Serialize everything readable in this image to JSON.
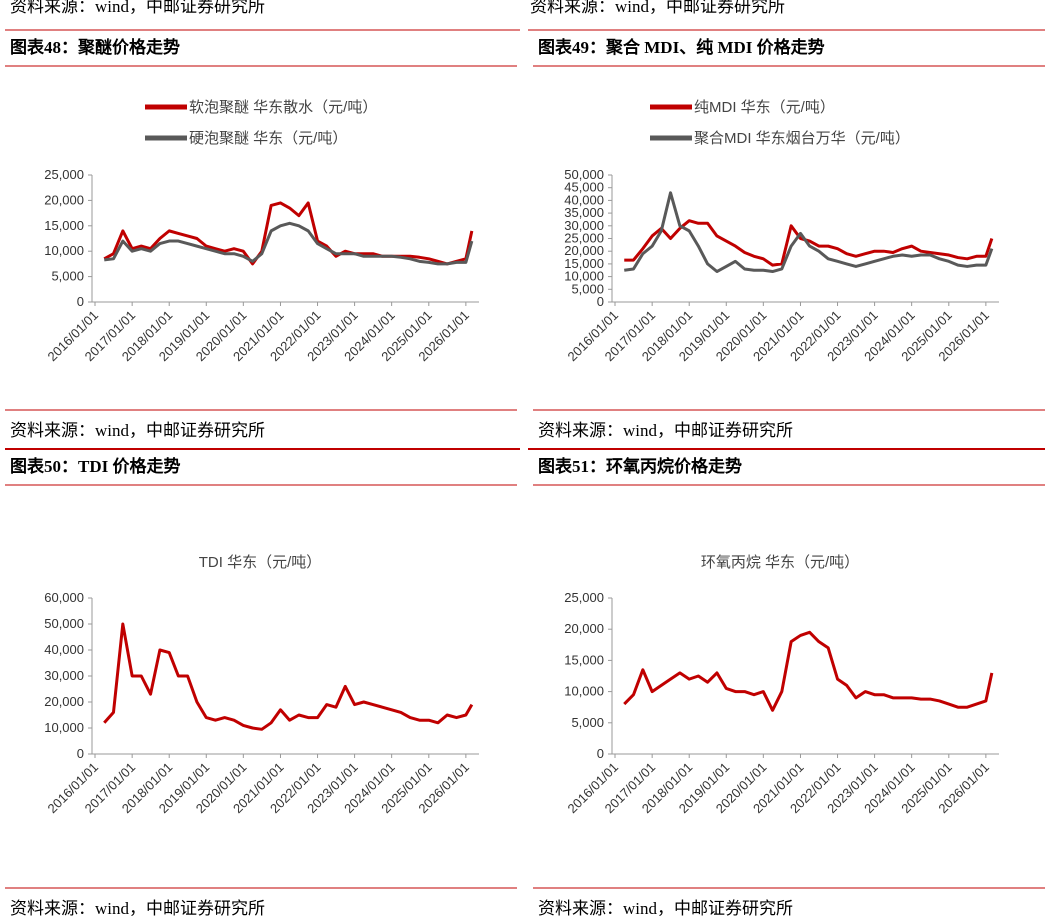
{
  "top_sources": [
    "资料来源：wind，中邮证券研究所",
    "资料来源：wind，中邮证券研究所"
  ],
  "chart_data": [
    {
      "type": "line",
      "title": "图表48：聚醚价格走势",
      "source": "资料来源：wind，中邮证券研究所",
      "legend_marker": true,
      "x": [
        "2016/04/01",
        "2016/07/01",
        "2016/10/01",
        "2017/01/01",
        "2017/04/01",
        "2017/07/01",
        "2017/10/01",
        "2018/01/01",
        "2018/04/01",
        "2018/07/01",
        "2018/10/01",
        "2019/01/01",
        "2019/04/01",
        "2019/07/01",
        "2019/10/01",
        "2020/01/01",
        "2020/04/01",
        "2020/07/01",
        "2020/10/01",
        "2021/01/01",
        "2021/04/01",
        "2021/07/01",
        "2021/10/01",
        "2022/01/01",
        "2022/04/01",
        "2022/07/01",
        "2022/10/01",
        "2023/01/01",
        "2023/04/01",
        "2023/07/01",
        "2023/10/01",
        "2024/01/01",
        "2024/04/01",
        "2024/07/01",
        "2024/10/01",
        "2025/01/01",
        "2025/04/01",
        "2025/07/01",
        "2025/10/01",
        "2026/01/01",
        "2026/03/01"
      ],
      "series": [
        {
          "name": "软泡聚醚 华东散水（元/吨）",
          "color": "#c00000",
          "values": [
            8500,
            9500,
            14000,
            10500,
            11000,
            10500,
            12500,
            14000,
            13500,
            13000,
            12500,
            11000,
            10500,
            10000,
            10500,
            10000,
            7500,
            10000,
            19000,
            19500,
            18500,
            17000,
            19500,
            12000,
            11000,
            9000,
            10000,
            9500,
            9500,
            9500,
            9000,
            9000,
            9000,
            9000,
            8800,
            8500,
            8000,
            7500,
            8000,
            8500,
            14000
          ]
        },
        {
          "name": "硬泡聚醚 华东（元/吨）",
          "color": "#595959",
          "values": [
            8300,
            8500,
            12000,
            10000,
            10500,
            10000,
            11500,
            12000,
            12000,
            11500,
            11000,
            10500,
            10000,
            9500,
            9500,
            9000,
            8000,
            9500,
            14000,
            15000,
            15500,
            15000,
            14000,
            11500,
            10500,
            9500,
            9500,
            9500,
            9000,
            9000,
            9000,
            9000,
            8800,
            8500,
            8000,
            7800,
            7500,
            7500,
            7800,
            7800,
            12000
          ]
        }
      ],
      "xlim": [
        "2016/01/01",
        "2026/04/01"
      ],
      "xticks": [
        "2016/01/01",
        "2017/01/01",
        "2018/01/01",
        "2019/01/01",
        "2020/01/01",
        "2021/01/01",
        "2022/01/01",
        "2023/01/01",
        "2024/01/01",
        "2025/01/01",
        "2026/01/01"
      ],
      "ylim": [
        0,
        25000
      ],
      "yticks": [
        0,
        {
          "value": 5000,
          "label": "5,000"
        },
        {
          "value": 10000,
          "label": "10,000"
        },
        {
          "value": 15000,
          "label": "15,000"
        },
        {
          "value": 20000,
          "label": "20,000"
        },
        {
          "value": 25000,
          "label": "25,000"
        }
      ]
    },
    {
      "type": "line",
      "title": "图表49：聚合 MDI、纯 MDI 价格走势",
      "source": "资料来源：wind，中邮证券研究所",
      "legend_marker": true,
      "x": [
        "2016/04/01",
        "2016/07/01",
        "2016/10/01",
        "2017/01/01",
        "2017/04/01",
        "2017/07/01",
        "2017/10/01",
        "2018/01/01",
        "2018/04/01",
        "2018/07/01",
        "2018/10/01",
        "2019/01/01",
        "2019/04/01",
        "2019/07/01",
        "2019/10/01",
        "2020/01/01",
        "2020/04/01",
        "2020/07/01",
        "2020/10/01",
        "2021/01/01",
        "2021/04/01",
        "2021/07/01",
        "2021/10/01",
        "2022/01/01",
        "2022/04/01",
        "2022/07/01",
        "2022/10/01",
        "2023/01/01",
        "2023/04/01",
        "2023/07/01",
        "2023/10/01",
        "2024/01/01",
        "2024/04/01",
        "2024/07/01",
        "2024/10/01",
        "2025/01/01",
        "2025/04/01",
        "2025/07/01",
        "2025/10/01",
        "2026/01/01",
        "2026/03/01"
      ],
      "series": [
        {
          "name": "纯MDI 华东（元/吨）",
          "color": "#c00000",
          "values": [
            16500,
            16500,
            21000,
            26000,
            29000,
            25000,
            29000,
            32000,
            31000,
            31000,
            26000,
            24000,
            22000,
            19500,
            18000,
            17000,
            14500,
            15000,
            30000,
            25000,
            24000,
            22000,
            22000,
            21000,
            19000,
            18000,
            19000,
            20000,
            20000,
            19500,
            21000,
            22000,
            20000,
            19500,
            19000,
            18500,
            17500,
            17000,
            18000,
            18000,
            25000
          ]
        },
        {
          "name": "聚合MDI 华东烟台万华（元/吨）",
          "color": "#595959",
          "values": [
            12500,
            13000,
            19000,
            22000,
            28000,
            43000,
            30000,
            28000,
            22000,
            15000,
            12000,
            14000,
            16000,
            13000,
            12500,
            12500,
            12000,
            13000,
            22000,
            27000,
            22000,
            20000,
            17000,
            16000,
            15000,
            14000,
            15000,
            16000,
            17000,
            18000,
            18500,
            18000,
            18500,
            18500,
            17000,
            16000,
            14500,
            14000,
            14500,
            14500,
            21000
          ]
        }
      ],
      "xlim": [
        "2016/01/01",
        "2026/04/01"
      ],
      "xticks": [
        "2016/01/01",
        "2017/01/01",
        "2018/01/01",
        "2019/01/01",
        "2020/01/01",
        "2021/01/01",
        "2022/01/01",
        "2023/01/01",
        "2024/01/01",
        "2025/01/01",
        "2026/01/01"
      ],
      "ylim": [
        0,
        50000
      ],
      "yticks": [
        0,
        {
          "value": 5000,
          "label": "5,000"
        },
        {
          "value": 10000,
          "label": "10,000"
        },
        {
          "value": 15000,
          "label": "15,000"
        },
        {
          "value": 20000,
          "label": "20,000"
        },
        {
          "value": 25000,
          "label": "25,000"
        },
        {
          "value": 30000,
          "label": "30,000"
        },
        {
          "value": 35000,
          "label": "35,000"
        },
        {
          "value": 40000,
          "label": "40,000"
        },
        {
          "value": 45000,
          "label": "45,000"
        },
        {
          "value": 50000,
          "label": "50,000"
        }
      ]
    },
    {
      "type": "line",
      "title": "图表50：TDI 价格走势",
      "source": "资料来源：wind，中邮证券研究所",
      "legend_marker": false,
      "x": [
        "2016/04/01",
        "2016/07/01",
        "2016/10/01",
        "2017/01/01",
        "2017/04/01",
        "2017/07/01",
        "2017/10/01",
        "2018/01/01",
        "2018/04/01",
        "2018/07/01",
        "2018/10/01",
        "2019/01/01",
        "2019/04/01",
        "2019/07/01",
        "2019/10/01",
        "2020/01/01",
        "2020/04/01",
        "2020/07/01",
        "2020/10/01",
        "2021/01/01",
        "2021/04/01",
        "2021/07/01",
        "2021/10/01",
        "2022/01/01",
        "2022/04/01",
        "2022/07/01",
        "2022/10/01",
        "2023/01/01",
        "2023/04/01",
        "2023/07/01",
        "2023/10/01",
        "2024/01/01",
        "2024/04/01",
        "2024/07/01",
        "2024/10/01",
        "2025/01/01",
        "2025/04/01",
        "2025/07/01",
        "2025/10/01",
        "2026/01/01",
        "2026/03/01"
      ],
      "series": [
        {
          "name": "TDI 华东（元/吨）",
          "color": "#c00000",
          "values": [
            12000,
            16000,
            50000,
            30000,
            30000,
            23000,
            40000,
            39000,
            30000,
            30000,
            20000,
            14000,
            13000,
            14000,
            13000,
            11000,
            10000,
            9500,
            12000,
            17000,
            13000,
            15000,
            14000,
            14000,
            19000,
            18000,
            26000,
            19000,
            20000,
            19000,
            18000,
            17000,
            16000,
            14000,
            13000,
            13000,
            12000,
            15000,
            14000,
            15000,
            19000
          ]
        }
      ],
      "xlim": [
        "2016/01/01",
        "2026/04/01"
      ],
      "xticks": [
        "2016/01/01",
        "2017/01/01",
        "2018/01/01",
        "2019/01/01",
        "2020/01/01",
        "2021/01/01",
        "2022/01/01",
        "2023/01/01",
        "2024/01/01",
        "2025/01/01",
        "2026/01/01"
      ],
      "ylim": [
        0,
        60000
      ],
      "yticks": [
        0,
        {
          "value": 10000,
          "label": "10,000"
        },
        {
          "value": 20000,
          "label": "20,000"
        },
        {
          "value": 30000,
          "label": "30,000"
        },
        {
          "value": 40000,
          "label": "40,000"
        },
        {
          "value": 50000,
          "label": "50,000"
        },
        {
          "value": 60000,
          "label": "60,000"
        }
      ]
    },
    {
      "type": "line",
      "title": "图表51：环氧丙烷价格走势",
      "source": "资料来源：wind，中邮证券研究所",
      "legend_marker": false,
      "x": [
        "2016/04/01",
        "2016/07/01",
        "2016/10/01",
        "2017/01/01",
        "2017/04/01",
        "2017/07/01",
        "2017/10/01",
        "2018/01/01",
        "2018/04/01",
        "2018/07/01",
        "2018/10/01",
        "2019/01/01",
        "2019/04/01",
        "2019/07/01",
        "2019/10/01",
        "2020/01/01",
        "2020/04/01",
        "2020/07/01",
        "2020/10/01",
        "2021/01/01",
        "2021/04/01",
        "2021/07/01",
        "2021/10/01",
        "2022/01/01",
        "2022/04/01",
        "2022/07/01",
        "2022/10/01",
        "2023/01/01",
        "2023/04/01",
        "2023/07/01",
        "2023/10/01",
        "2024/01/01",
        "2024/04/01",
        "2024/07/01",
        "2024/10/01",
        "2025/01/01",
        "2025/04/01",
        "2025/07/01",
        "2025/10/01",
        "2026/01/01",
        "2026/03/01"
      ],
      "series": [
        {
          "name": "环氧丙烷 华东（元/吨）",
          "color": "#c00000",
          "values": [
            8000,
            9500,
            13500,
            10000,
            11000,
            12000,
            13000,
            12000,
            12500,
            11500,
            13000,
            10500,
            10000,
            10000,
            9500,
            10000,
            7000,
            10000,
            18000,
            19000,
            19500,
            18000,
            17000,
            12000,
            11000,
            9000,
            10000,
            9500,
            9500,
            9000,
            9000,
            9000,
            8800,
            8800,
            8500,
            8000,
            7500,
            7500,
            8000,
            8500,
            13000
          ]
        }
      ],
      "xlim": [
        "2016/01/01",
        "2026/04/01"
      ],
      "xticks": [
        "2016/01/01",
        "2017/01/01",
        "2018/01/01",
        "2019/01/01",
        "2020/01/01",
        "2021/01/01",
        "2022/01/01",
        "2023/01/01",
        "2024/01/01",
        "2025/01/01",
        "2026/01/01"
      ],
      "ylim": [
        0,
        25000
      ],
      "yticks": [
        0,
        {
          "value": 5000,
          "label": "5,000"
        },
        {
          "value": 10000,
          "label": "10,000"
        },
        {
          "value": 15000,
          "label": "15,000"
        },
        {
          "value": 20000,
          "label": "20,000"
        },
        {
          "value": 25000,
          "label": "25,000"
        }
      ]
    }
  ]
}
